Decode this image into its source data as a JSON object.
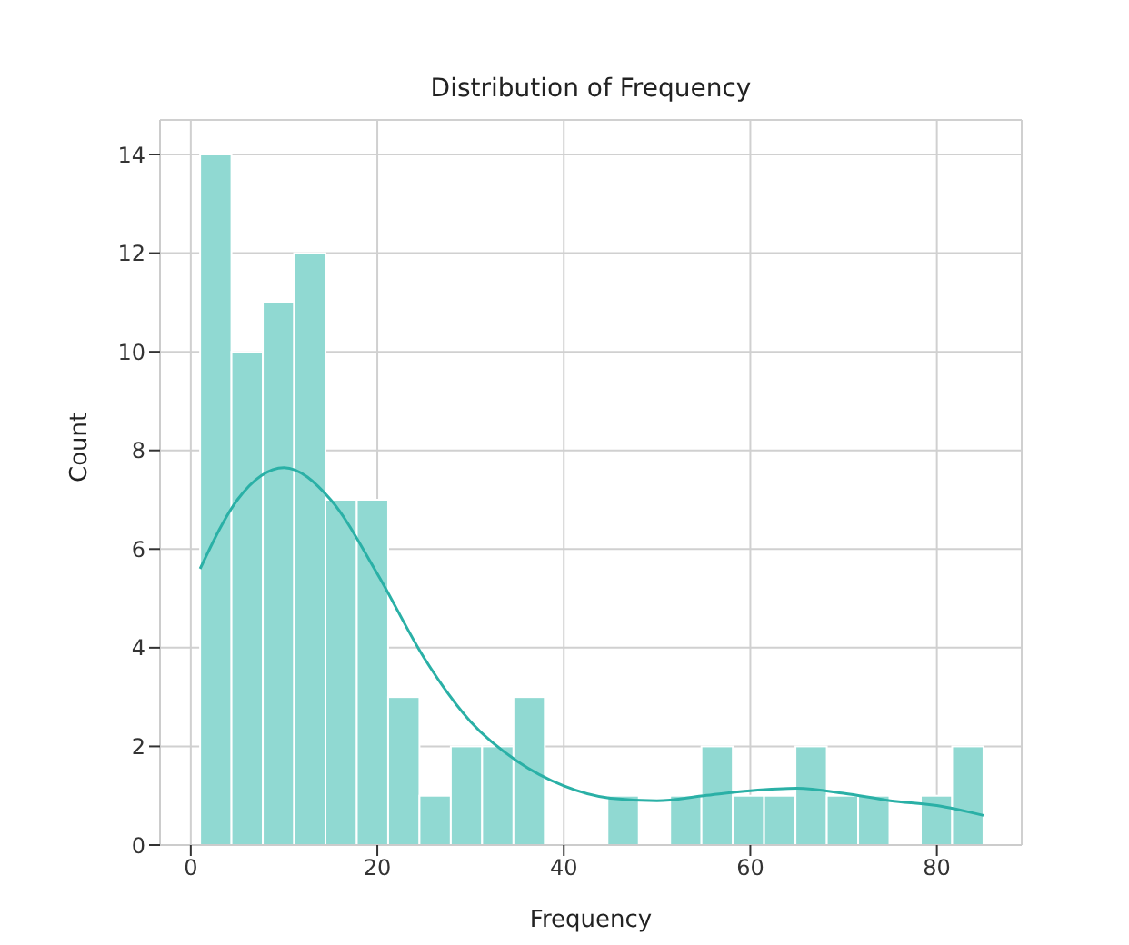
{
  "chart_data": {
    "type": "histogram",
    "title": "Distribution of Frequency",
    "xlabel": "Frequency",
    "ylabel": "Count",
    "bins": [
      1,
      4.36,
      7.72,
      11.08,
      14.44,
      17.8,
      21.16,
      24.52,
      27.88,
      31.24,
      34.6,
      37.96,
      41.32,
      44.68,
      48.04,
      51.4,
      54.76,
      58.12,
      61.48,
      64.84,
      68.2,
      71.56,
      74.92,
      78.28,
      81.64,
      85
    ],
    "values": [
      14,
      10,
      11,
      12,
      7,
      7,
      3,
      1,
      2,
      2,
      3,
      0,
      0,
      1,
      0,
      1,
      2,
      1,
      1,
      2,
      1,
      1,
      0,
      1,
      2
    ],
    "color": "#90d9d2",
    "series": [
      {
        "type": "line",
        "color": "#2ab0a6",
        "x": [
          1,
          5,
          10,
          15,
          20,
          25,
          30,
          35,
          40,
          45,
          50,
          55,
          60,
          65,
          70,
          75,
          80,
          85
        ],
        "values": [
          5.6,
          7,
          7.65,
          7,
          5.5,
          3.8,
          2.5,
          1.7,
          1.2,
          0.95,
          0.9,
          1,
          1.1,
          1.15,
          1.05,
          0.9,
          0.8,
          0.6
        ]
      }
    ],
    "xlim": [
      -3.3,
      89.1
    ],
    "xticks": [
      0,
      20,
      40,
      60,
      80
    ],
    "ylim": [
      0,
      14.7
    ],
    "yticks": [
      0,
      2,
      4,
      6,
      8,
      10,
      12,
      14
    ],
    "grid": true
  }
}
